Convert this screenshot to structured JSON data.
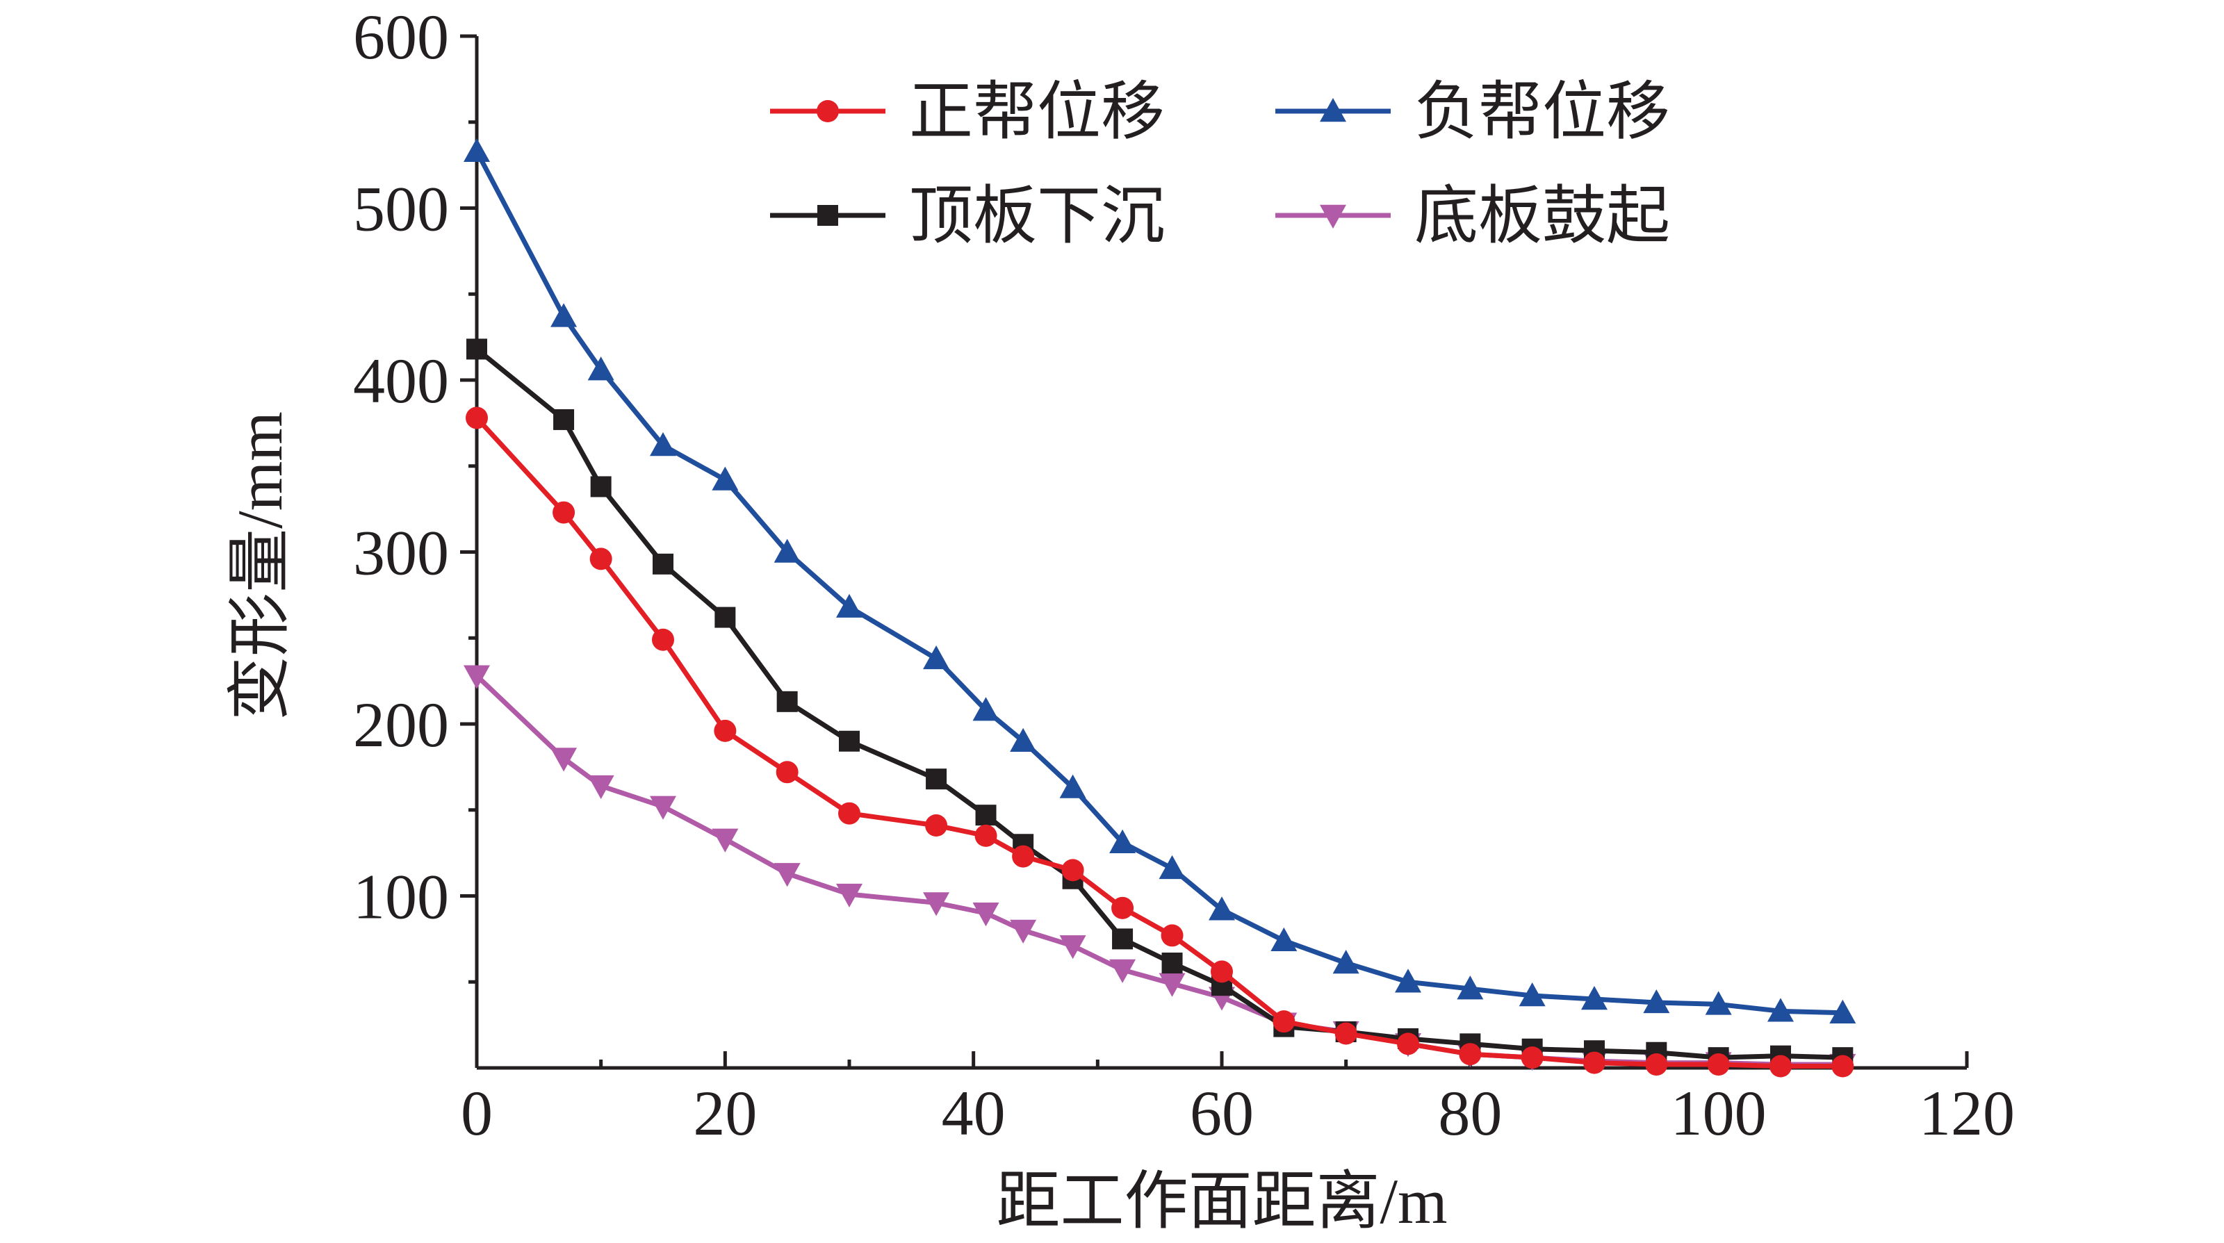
{
  "chart_data": {
    "type": "line",
    "title": "",
    "xlabel": "距工作面距离/m",
    "ylabel": "变形量/mm",
    "xlim": [
      0,
      120
    ],
    "ylim": [
      0,
      600
    ],
    "x_ticks": [
      0,
      20,
      40,
      60,
      80,
      100,
      120
    ],
    "y_ticks": [
      100,
      200,
      300,
      400,
      500,
      600
    ],
    "grid": false,
    "legend_position": "top-right",
    "series": [
      {
        "name": "正帮位移",
        "color": "#e31e24",
        "marker": "circle",
        "x": [
          0,
          7,
          10,
          15,
          20,
          25,
          30,
          37,
          41,
          44,
          48,
          52,
          56,
          60,
          65,
          70,
          75,
          80,
          85,
          90,
          95,
          100,
          105,
          110
        ],
        "y": [
          378,
          323,
          296,
          249,
          196,
          172,
          148,
          141,
          135,
          123,
          115,
          93,
          77,
          56,
          27,
          20,
          14,
          8,
          6,
          3,
          2,
          2,
          1,
          1
        ]
      },
      {
        "name": "负帮位移",
        "color": "#1f4e9c",
        "marker": "triangle-up",
        "x": [
          0,
          7,
          10,
          15,
          20,
          25,
          30,
          37,
          41,
          44,
          48,
          52,
          56,
          60,
          65,
          70,
          75,
          80,
          85,
          90,
          95,
          100,
          105,
          110
        ],
        "y": [
          533,
          437,
          406,
          362,
          342,
          300,
          268,
          238,
          208,
          190,
          163,
          131,
          116,
          92,
          74,
          61,
          50,
          46,
          42,
          40,
          38,
          37,
          33,
          32
        ]
      },
      {
        "name": "顶板下沉",
        "color": "#231f20",
        "marker": "square",
        "x": [
          0,
          7,
          10,
          15,
          20,
          25,
          30,
          37,
          41,
          44,
          48,
          52,
          56,
          60,
          65,
          70,
          75,
          80,
          85,
          90,
          95,
          100,
          105,
          110
        ],
        "y": [
          418,
          377,
          338,
          293,
          262,
          213,
          190,
          168,
          147,
          130,
          110,
          75,
          61,
          48,
          24,
          21,
          17,
          14,
          11,
          10,
          9,
          6,
          7,
          6
        ]
      },
      {
        "name": "底板鼓起",
        "color": "#b05aa8",
        "marker": "triangle-down",
        "x": [
          0,
          7,
          10,
          15,
          20,
          25,
          30,
          37,
          41,
          44,
          48,
          52,
          56,
          60,
          65,
          70,
          75,
          80,
          85,
          90,
          95,
          100,
          105,
          110
        ],
        "y": [
          228,
          180,
          164,
          152,
          133,
          113,
          101,
          96,
          90,
          80,
          71,
          57,
          49,
          41,
          26,
          21,
          14,
          8,
          6,
          4,
          3,
          3,
          2,
          2
        ]
      }
    ]
  }
}
